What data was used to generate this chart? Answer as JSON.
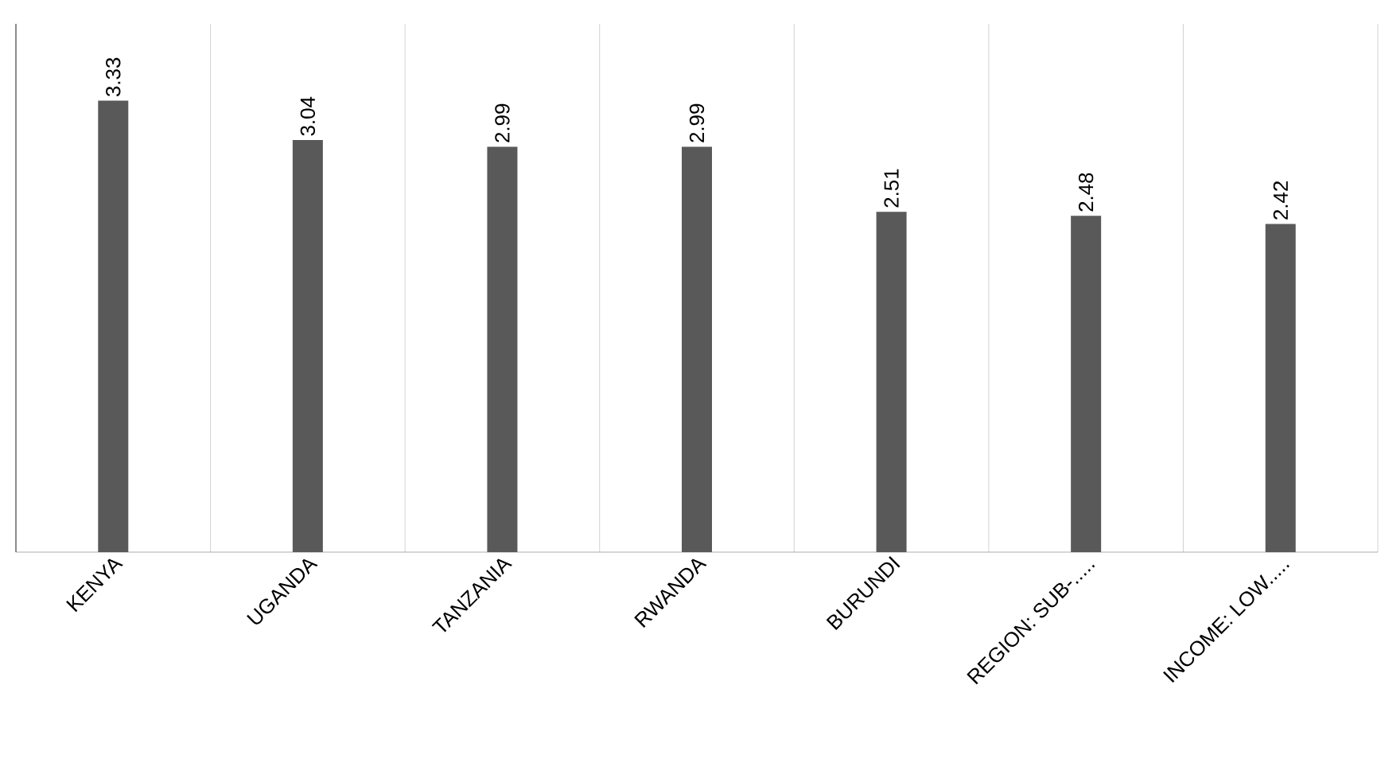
{
  "chart_data": {
    "type": "bar",
    "categories": [
      "KENYA",
      "UGANDA",
      "TANZANIA",
      "RWANDA",
      "BURUNDI",
      "REGION: SUB-.....",
      "INCOME: LOW....."
    ],
    "values": [
      3.33,
      3.04,
      2.99,
      2.99,
      2.51,
      2.48,
      2.42
    ],
    "color": "#595959",
    "data_labels": true,
    "grid": "x",
    "tick_labels": "x"
  }
}
